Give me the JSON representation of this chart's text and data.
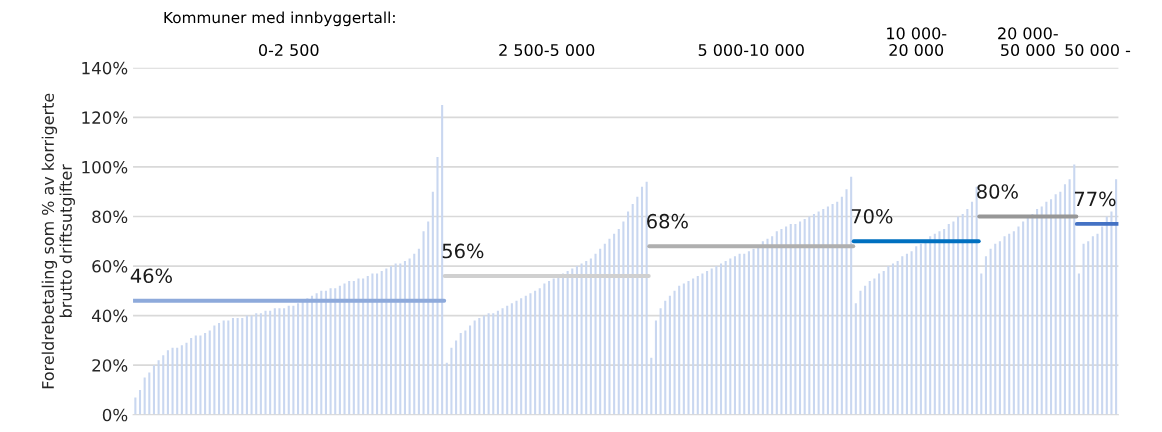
{
  "chart_data": {
    "type": "bar",
    "ylabel": "Foreldrebetaling som % av korrigerte\nbrutto driftsutgifter",
    "categories": [
      null,
      null,
      null,
      null,
      null,
      null,
      null,
      null,
      null,
      null,
      null,
      null,
      null,
      null,
      null,
      null,
      null,
      null,
      null,
      null,
      null,
      null,
      null,
      null,
      null,
      null,
      null,
      null,
      null,
      null,
      null,
      null,
      null,
      null,
      null,
      null,
      null,
      null,
      null,
      null,
      null,
      null,
      null,
      null,
      null,
      null,
      null,
      null,
      null,
      null,
      null,
      null,
      null,
      null,
      null,
      null,
      null,
      null,
      null,
      null,
      null,
      null,
      null,
      null,
      null,
      null,
      null,
      null,
      null,
      null,
      null,
      null,
      null,
      null,
      null,
      null,
      null,
      null,
      null,
      null,
      null,
      null,
      null,
      null,
      null,
      null,
      null,
      null,
      null,
      null,
      null,
      null,
      null,
      null,
      null,
      null,
      null,
      null,
      null,
      null,
      null,
      null,
      null,
      null,
      null,
      null,
      null,
      null,
      null,
      null,
      null,
      null,
      null,
      null,
      null,
      null,
      null,
      null,
      null,
      null,
      null,
      null,
      null,
      null,
      null,
      null,
      null,
      null,
      null,
      null,
      null,
      null,
      null,
      null,
      null,
      null,
      null,
      null,
      null,
      null,
      null,
      null,
      null,
      null,
      null,
      null,
      null,
      null,
      null,
      null,
      null,
      null,
      null,
      null,
      null,
      null,
      null,
      null,
      null,
      null,
      null,
      null,
      null,
      null,
      null,
      null,
      null,
      null,
      null,
      null,
      null,
      null,
      null,
      null,
      null,
      null,
      null,
      null,
      null,
      null,
      null,
      null,
      null,
      null,
      null,
      null,
      null,
      null,
      null,
      null,
      null,
      null,
      null,
      null,
      null,
      null,
      null,
      null,
      null,
      null,
      null,
      null,
      null,
      null,
      null,
      null,
      null,
      null,
      null,
      null,
      null,
      null
    ],
    "series": [
      {
        "color": "#c9d7f0",
        "values": [
          7,
          10,
          15,
          17,
          20,
          22,
          24,
          26,
          27,
          27,
          28,
          29,
          31,
          32,
          32,
          33,
          34,
          36,
          37,
          38,
          38,
          39,
          39,
          39,
          40,
          40,
          41,
          41,
          42,
          42,
          43,
          43,
          43,
          44,
          44,
          45,
          46,
          47,
          48,
          49,
          50,
          50,
          51,
          51,
          52,
          53,
          54,
          54,
          55,
          55,
          56,
          57,
          57,
          58,
          59,
          60,
          61,
          61,
          62,
          63,
          65,
          67,
          74,
          78,
          90,
          104,
          125,
          21,
          27,
          30,
          33,
          34,
          36,
          38,
          39,
          40,
          41,
          41,
          42,
          43,
          44,
          45,
          46,
          47,
          48,
          49,
          50,
          51,
          53,
          54,
          55,
          56,
          57,
          58,
          59,
          60,
          61,
          62,
          63,
          65,
          67,
          69,
          71,
          73,
          75,
          78,
          82,
          85,
          88,
          92,
          94,
          23,
          38,
          43,
          46,
          48,
          50,
          52,
          53,
          54,
          55,
          56,
          57,
          58,
          59,
          60,
          61,
          62,
          63,
          64,
          65,
          65,
          66,
          67,
          68,
          70,
          71,
          72,
          74,
          75,
          76,
          77,
          77,
          78,
          79,
          80,
          81,
          82,
          83,
          84,
          85,
          86,
          88,
          91,
          96,
          45,
          50,
          52,
          54,
          55,
          57,
          58,
          60,
          61,
          62,
          64,
          65,
          66,
          68,
          69,
          70,
          72,
          73,
          74,
          75,
          77,
          78,
          80,
          81,
          83,
          86,
          92,
          57,
          64,
          67,
          69,
          70,
          72,
          73,
          74,
          76,
          78,
          80,
          81,
          83,
          84,
          86,
          87,
          89,
          90,
          93,
          95,
          101,
          57,
          69,
          70,
          72,
          73,
          76,
          80,
          82,
          95
        ]
      },
      {
        "type": "line",
        "color": "#8eaadb",
        "values": [
          46,
          46,
          46,
          46,
          46,
          46,
          46,
          46,
          46,
          46,
          46,
          46,
          46,
          46,
          46,
          46,
          46,
          46,
          46,
          46,
          46,
          46,
          46,
          46,
          46,
          46,
          46,
          46,
          46,
          46,
          46,
          46,
          46,
          46,
          46,
          46,
          46,
          46,
          46,
          46,
          46,
          46,
          46,
          46,
          46,
          46,
          46,
          46,
          46,
          46,
          46,
          46,
          46,
          46,
          46,
          46,
          46,
          46,
          46,
          46,
          46,
          46,
          46,
          46,
          46,
          46,
          46,
          null,
          null,
          null,
          null,
          null,
          null,
          null,
          null,
          null,
          null,
          null,
          null,
          null,
          null,
          null,
          null,
          null,
          null,
          null,
          null,
          null,
          null,
          null,
          null,
          null,
          null,
          null,
          null,
          null,
          null,
          null,
          null,
          null,
          null,
          null,
          null,
          null,
          null,
          null,
          null,
          null,
          null,
          null,
          null,
          null,
          null,
          null,
          null,
          null,
          null,
          null,
          null,
          null,
          null,
          null,
          null,
          null,
          null,
          null,
          null,
          null,
          null,
          null,
          null,
          null,
          null,
          null,
          null,
          null,
          null,
          null,
          null,
          null,
          null,
          null,
          null,
          null,
          null,
          null,
          null,
          null,
          null,
          null,
          null,
          null,
          null,
          null,
          null,
          null,
          null,
          null,
          null,
          null,
          null,
          null,
          null,
          null,
          null,
          null,
          null,
          null,
          null,
          null,
          null,
          null,
          null,
          null,
          null,
          null,
          null,
          null,
          null,
          null,
          null,
          null,
          null,
          null,
          null,
          null,
          null,
          null,
          null,
          null,
          null,
          null,
          null,
          null,
          null,
          null,
          null,
          null,
          null,
          null,
          null,
          null,
          null,
          null,
          null,
          null,
          null,
          null,
          null,
          null,
          null,
          null
        ]
      },
      {
        "type": "line",
        "color": "#d0d0d0",
        "values": [
          null,
          null,
          null,
          null,
          null,
          null,
          null,
          null,
          null,
          null,
          null,
          null,
          null,
          null,
          null,
          null,
          null,
          null,
          null,
          null,
          null,
          null,
          null,
          null,
          null,
          null,
          null,
          null,
          null,
          null,
          null,
          null,
          null,
          null,
          null,
          null,
          null,
          null,
          null,
          null,
          null,
          null,
          null,
          null,
          null,
          null,
          null,
          null,
          null,
          null,
          null,
          null,
          null,
          null,
          null,
          null,
          null,
          null,
          null,
          null,
          null,
          null,
          null,
          null,
          null,
          null,
          null,
          56,
          56,
          56,
          56,
          56,
          56,
          56,
          56,
          56,
          56,
          56,
          56,
          56,
          56,
          56,
          56,
          56,
          56,
          56,
          56,
          56,
          56,
          56,
          56,
          56,
          56,
          56,
          56,
          56,
          56,
          56,
          56,
          56,
          56,
          56,
          56,
          56,
          56,
          56,
          56,
          56,
          56,
          56,
          56,
          null,
          null,
          null,
          null,
          null,
          null,
          null,
          null,
          null,
          null,
          null,
          null,
          null,
          null,
          null,
          null,
          null,
          null,
          null,
          null,
          null,
          null,
          null,
          null,
          null,
          null,
          null,
          null,
          null,
          null,
          null,
          null,
          null,
          null,
          null,
          null,
          null,
          null,
          null,
          null,
          null,
          null,
          null,
          null,
          null,
          null,
          null,
          null,
          null,
          null,
          null,
          null,
          null,
          null,
          null,
          null,
          null,
          null,
          null,
          null,
          null,
          null,
          null,
          null,
          null,
          null,
          null,
          null,
          null,
          null,
          null,
          null,
          null,
          null,
          null,
          null,
          null,
          null,
          null,
          null,
          null,
          null,
          null,
          null,
          null,
          null,
          null,
          null,
          null,
          null,
          null,
          null,
          null,
          null,
          null,
          null,
          null,
          null,
          null,
          null,
          null
        ]
      },
      {
        "type": "line",
        "color": "#afafaf",
        "values": [
          null,
          null,
          null,
          null,
          null,
          null,
          null,
          null,
          null,
          null,
          null,
          null,
          null,
          null,
          null,
          null,
          null,
          null,
          null,
          null,
          null,
          null,
          null,
          null,
          null,
          null,
          null,
          null,
          null,
          null,
          null,
          null,
          null,
          null,
          null,
          null,
          null,
          null,
          null,
          null,
          null,
          null,
          null,
          null,
          null,
          null,
          null,
          null,
          null,
          null,
          null,
          null,
          null,
          null,
          null,
          null,
          null,
          null,
          null,
          null,
          null,
          null,
          null,
          null,
          null,
          null,
          null,
          null,
          null,
          null,
          null,
          null,
          null,
          null,
          null,
          null,
          null,
          null,
          null,
          null,
          null,
          null,
          null,
          null,
          null,
          null,
          null,
          null,
          null,
          null,
          null,
          null,
          null,
          null,
          null,
          null,
          null,
          null,
          null,
          null,
          null,
          null,
          null,
          null,
          null,
          null,
          null,
          null,
          null,
          null,
          null,
          68,
          68,
          68,
          68,
          68,
          68,
          68,
          68,
          68,
          68,
          68,
          68,
          68,
          68,
          68,
          68,
          68,
          68,
          68,
          68,
          68,
          68,
          68,
          68,
          68,
          68,
          68,
          68,
          68,
          68,
          68,
          68,
          68,
          68,
          68,
          68,
          68,
          68,
          68,
          68,
          68,
          68,
          68,
          68,
          null,
          null,
          null,
          null,
          null,
          null,
          null,
          null,
          null,
          null,
          null,
          null,
          null,
          null,
          null,
          null,
          null,
          null,
          null,
          null,
          null,
          null,
          null,
          null,
          null,
          null,
          null,
          null,
          null,
          null,
          null,
          null,
          null,
          null,
          null,
          null,
          null,
          null,
          null,
          null,
          null,
          null,
          null,
          null,
          null,
          null,
          null,
          null,
          null,
          null,
          null,
          null,
          null,
          null,
          null,
          null,
          null
        ]
      },
      {
        "type": "line",
        "color": "#0070c0",
        "values": [
          null,
          null,
          null,
          null,
          null,
          null,
          null,
          null,
          null,
          null,
          null,
          null,
          null,
          null,
          null,
          null,
          null,
          null,
          null,
          null,
          null,
          null,
          null,
          null,
          null,
          null,
          null,
          null,
          null,
          null,
          null,
          null,
          null,
          null,
          null,
          null,
          null,
          null,
          null,
          null,
          null,
          null,
          null,
          null,
          null,
          null,
          null,
          null,
          null,
          null,
          null,
          null,
          null,
          null,
          null,
          null,
          null,
          null,
          null,
          null,
          null,
          null,
          null,
          null,
          null,
          null,
          null,
          null,
          null,
          null,
          null,
          null,
          null,
          null,
          null,
          null,
          null,
          null,
          null,
          null,
          null,
          null,
          null,
          null,
          null,
          null,
          null,
          null,
          null,
          null,
          null,
          null,
          null,
          null,
          null,
          null,
          null,
          null,
          null,
          null,
          null,
          null,
          null,
          null,
          null,
          null,
          null,
          null,
          null,
          null,
          null,
          null,
          null,
          null,
          null,
          null,
          null,
          null,
          null,
          null,
          null,
          null,
          null,
          null,
          null,
          null,
          null,
          null,
          null,
          null,
          null,
          null,
          null,
          null,
          null,
          null,
          null,
          null,
          null,
          null,
          null,
          null,
          null,
          null,
          null,
          null,
          null,
          null,
          null,
          null,
          null,
          null,
          null,
          null,
          null,
          70,
          70,
          70,
          70,
          70,
          70,
          70,
          70,
          70,
          70,
          70,
          70,
          70,
          70,
          70,
          70,
          70,
          70,
          70,
          70,
          70,
          70,
          70,
          70,
          70,
          70,
          70,
          null,
          null,
          null,
          null,
          null,
          null,
          null,
          null,
          null,
          null,
          null,
          null,
          null,
          null,
          null,
          null,
          null,
          null,
          null,
          null,
          null,
          null,
          null,
          null,
          null,
          null,
          null,
          null,
          null,
          null
        ]
      },
      {
        "type": "line",
        "color": "#979797",
        "values": [
          null,
          null,
          null,
          null,
          null,
          null,
          null,
          null,
          null,
          null,
          null,
          null,
          null,
          null,
          null,
          null,
          null,
          null,
          null,
          null,
          null,
          null,
          null,
          null,
          null,
          null,
          null,
          null,
          null,
          null,
          null,
          null,
          null,
          null,
          null,
          null,
          null,
          null,
          null,
          null,
          null,
          null,
          null,
          null,
          null,
          null,
          null,
          null,
          null,
          null,
          null,
          null,
          null,
          null,
          null,
          null,
          null,
          null,
          null,
          null,
          null,
          null,
          null,
          null,
          null,
          null,
          null,
          null,
          null,
          null,
          null,
          null,
          null,
          null,
          null,
          null,
          null,
          null,
          null,
          null,
          null,
          null,
          null,
          null,
          null,
          null,
          null,
          null,
          null,
          null,
          null,
          null,
          null,
          null,
          null,
          null,
          null,
          null,
          null,
          null,
          null,
          null,
          null,
          null,
          null,
          null,
          null,
          null,
          null,
          null,
          null,
          null,
          null,
          null,
          null,
          null,
          null,
          null,
          null,
          null,
          null,
          null,
          null,
          null,
          null,
          null,
          null,
          null,
          null,
          null,
          null,
          null,
          null,
          null,
          null,
          null,
          null,
          null,
          null,
          null,
          null,
          null,
          null,
          null,
          null,
          null,
          null,
          null,
          null,
          null,
          null,
          null,
          null,
          null,
          null,
          null,
          null,
          null,
          null,
          null,
          null,
          null,
          null,
          null,
          null,
          null,
          null,
          null,
          null,
          null,
          null,
          null,
          null,
          null,
          null,
          null,
          null,
          null,
          null,
          null,
          null,
          null,
          80,
          80,
          80,
          80,
          80,
          80,
          80,
          80,
          80,
          80,
          80,
          80,
          80,
          80,
          80,
          80,
          80,
          80,
          80,
          80,
          80,
          null,
          null,
          null,
          null,
          null,
          null,
          null,
          null,
          null
        ]
      },
      {
        "type": "line",
        "color": "#4472c4",
        "values": [
          null,
          null,
          null,
          null,
          null,
          null,
          null,
          null,
          null,
          null,
          null,
          null,
          null,
          null,
          null,
          null,
          null,
          null,
          null,
          null,
          null,
          null,
          null,
          null,
          null,
          null,
          null,
          null,
          null,
          null,
          null,
          null,
          null,
          null,
          null,
          null,
          null,
          null,
          null,
          null,
          null,
          null,
          null,
          null,
          null,
          null,
          null,
          null,
          null,
          null,
          null,
          null,
          null,
          null,
          null,
          null,
          null,
          null,
          null,
          null,
          null,
          null,
          null,
          null,
          null,
          null,
          null,
          null,
          null,
          null,
          null,
          null,
          null,
          null,
          null,
          null,
          null,
          null,
          null,
          null,
          null,
          null,
          null,
          null,
          null,
          null,
          null,
          null,
          null,
          null,
          null,
          null,
          null,
          null,
          null,
          null,
          null,
          null,
          null,
          null,
          null,
          null,
          null,
          null,
          null,
          null,
          null,
          null,
          null,
          null,
          null,
          null,
          null,
          null,
          null,
          null,
          null,
          null,
          null,
          null,
          null,
          null,
          null,
          null,
          null,
          null,
          null,
          null,
          null,
          null,
          null,
          null,
          null,
          null,
          null,
          null,
          null,
          null,
          null,
          null,
          null,
          null,
          null,
          null,
          null,
          null,
          null,
          null,
          null,
          null,
          null,
          null,
          null,
          null,
          null,
          null,
          null,
          null,
          null,
          null,
          null,
          null,
          null,
          null,
          null,
          null,
          null,
          null,
          null,
          null,
          null,
          null,
          null,
          null,
          null,
          null,
          null,
          null,
          null,
          null,
          null,
          null,
          null,
          null,
          null,
          null,
          null,
          null,
          null,
          null,
          null,
          null,
          null,
          null,
          null,
          null,
          null,
          null,
          null,
          null,
          null,
          null,
          null,
          77,
          77,
          77,
          77,
          77,
          77,
          77,
          77,
          77
        ]
      }
    ],
    "ylim": [
      0,
      140
    ],
    "yticks": [
      {
        "value": 0,
        "label": "0%"
      },
      {
        "value": 20,
        "label": "20%"
      },
      {
        "value": 40,
        "label": "40%"
      },
      {
        "value": 60,
        "label": "60%"
      },
      {
        "value": 80,
        "label": "80%"
      },
      {
        "value": 100,
        "label": "100%"
      },
      {
        "value": 120,
        "label": "120%"
      },
      {
        "value": 140,
        "label": "140%"
      }
    ],
    "grid": "y",
    "annotations": [
      "Kommuner med innbyggertall:",
      "0-2 500",
      "2 500-5 000",
      "5 000-10 000",
      "10 000-\n20 000",
      "20 000-\n50 000",
      "50 000 -",
      {
        "text": "46%",
        "y": 46
      },
      {
        "text": "56%",
        "y": 56
      },
      {
        "text": "68%",
        "y": 68
      },
      {
        "text": "70%",
        "y": 70
      },
      {
        "text": "80%",
        "y": 80
      },
      {
        "text": "77%",
        "y": 77
      }
    ]
  }
}
